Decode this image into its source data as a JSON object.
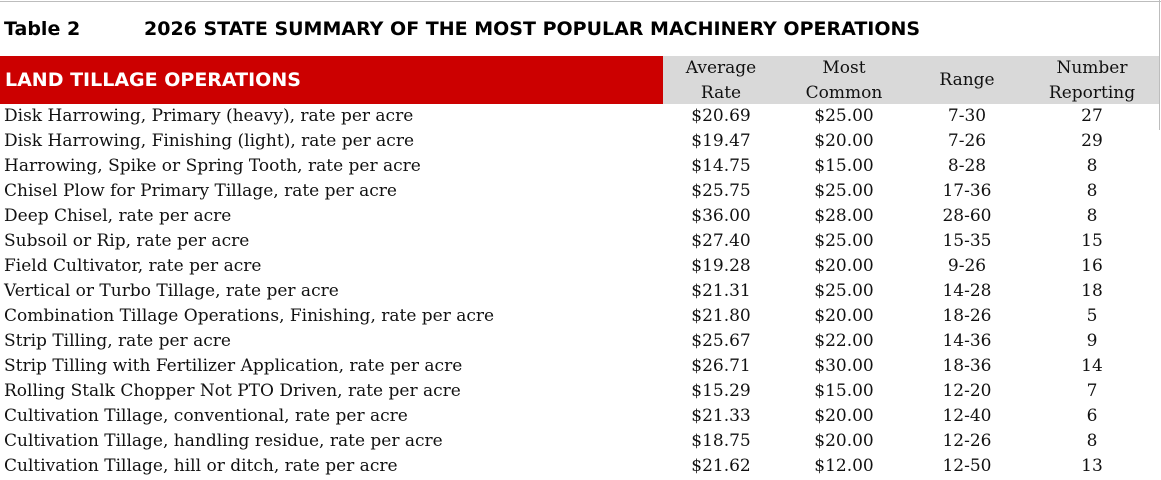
{
  "table": {
    "number": "Table 2",
    "title": "2026 STATE SUMMARY OF THE MOST POPULAR MACHINERY OPERATIONS"
  },
  "section": {
    "title": "LAND TILLAGE OPERATIONS",
    "color": "#cc0000"
  },
  "columns": {
    "avg": [
      "Average",
      "Rate"
    ],
    "most": [
      "Most",
      "Common"
    ],
    "range": "Range",
    "number": [
      "Number",
      "Reporting"
    ],
    "header_bg": "#d9d9d9"
  },
  "rows": [
    {
      "operation": "Disk Harrowing, Primary (heavy), rate per acre",
      "avg": "$20.69",
      "most": "$25.00",
      "range": "7-30",
      "number": "27"
    },
    {
      "operation": "Disk Harrowing, Finishing (light), rate per acre",
      "avg": "$19.47",
      "most": "$20.00",
      "range": "7-26",
      "number": "29"
    },
    {
      "operation": "Harrowing, Spike or Spring Tooth, rate per acre",
      "avg": "$14.75",
      "most": "$15.00",
      "range": "8-28",
      "number": "8"
    },
    {
      "operation": "Chisel Plow for Primary Tillage, rate per acre",
      "avg": "$25.75",
      "most": "$25.00",
      "range": "17-36",
      "number": "8"
    },
    {
      "operation": "Deep Chisel, rate per acre",
      "avg": "$36.00",
      "most": "$28.00",
      "range": "28-60",
      "number": "8"
    },
    {
      "operation": "Subsoil or Rip, rate per acre",
      "avg": "$27.40",
      "most": "$25.00",
      "range": "15-35",
      "number": "15"
    },
    {
      "operation": "Field Cultivator, rate per acre",
      "avg": "$19.28",
      "most": "$20.00",
      "range": "9-26",
      "number": "16"
    },
    {
      "operation": "Vertical or Turbo Tillage, rate per acre",
      "avg": "$21.31",
      "most": "$25.00",
      "range": "14-28",
      "number": "18"
    },
    {
      "operation": "Combination Tillage Operations, Finishing, rate per acre",
      "avg": "$21.80",
      "most": "$20.00",
      "range": "18-26",
      "number": "5"
    },
    {
      "operation": "Strip Tilling, rate per acre",
      "avg": "$25.67",
      "most": "$22.00",
      "range": "14-36",
      "number": "9"
    },
    {
      "operation": "Strip Tilling with Fertilizer Application, rate per acre",
      "avg": "$26.71",
      "most": "$30.00",
      "range": "18-36",
      "number": "14"
    },
    {
      "operation": "Rolling Stalk Chopper Not PTO Driven, rate per acre",
      "avg": "$15.29",
      "most": "$15.00",
      "range": "12-20",
      "number": "7"
    },
    {
      "operation": "Cultivation Tillage, conventional, rate per acre",
      "avg": "$21.33",
      "most": "$20.00",
      "range": "12-40",
      "number": "6"
    },
    {
      "operation": "Cultivation Tillage, handling residue, rate per acre",
      "avg": "$18.75",
      "most": "$20.00",
      "range": "12-26",
      "number": "8"
    },
    {
      "operation": "Cultivation Tillage, hill or ditch, rate per acre",
      "avg": "$21.62",
      "most": "$12.00",
      "range": "12-50",
      "number": "13"
    }
  ]
}
